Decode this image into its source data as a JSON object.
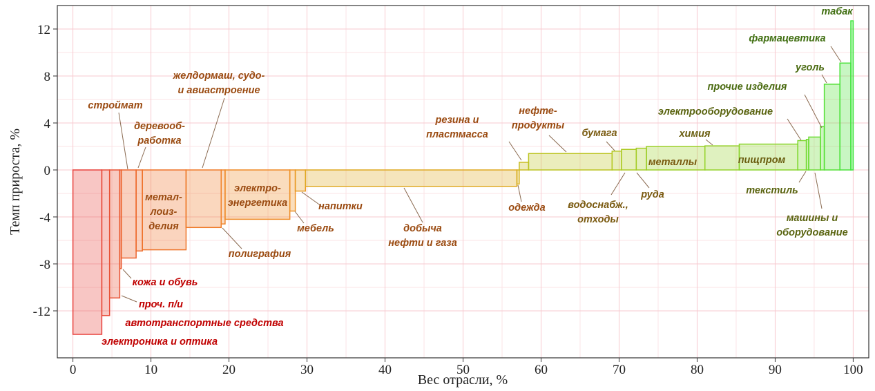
{
  "chart_data": {
    "type": "variable-width-bar",
    "x_label": "Вес отрасли, %",
    "y_label": "Темп прироста, %",
    "xlim": [
      -2,
      102
    ],
    "ylim": [
      -16,
      14
    ],
    "xticks": [
      0,
      10,
      20,
      30,
      40,
      50,
      60,
      70,
      80,
      90,
      100
    ],
    "yticks": [
      -12,
      -8,
      -4,
      0,
      4,
      8,
      12
    ],
    "grid": true,
    "categories": [
      [
        "электроника и оптика"
      ],
      [
        "автотранспортные средства"
      ],
      [
        "проч. п/и"
      ],
      [
        "кожа и обувь"
      ],
      [
        "строймат"
      ],
      [
        "деревооб-",
        "работка"
      ],
      [
        "метал-",
        "лоиз-",
        "делия"
      ],
      [
        "желдормаш, судо-",
        "и авиастроение"
      ],
      [
        "полиграфия"
      ],
      [
        "электро-",
        "энергетика"
      ],
      [
        "мебель"
      ],
      [
        "напитки"
      ],
      [
        "добыча",
        "нефти и газа"
      ],
      [
        "одежда"
      ],
      [
        "резина и",
        "пластмасса"
      ],
      [
        "нефте-",
        "продукты"
      ],
      [
        "бумага"
      ],
      [
        "водоснабж.,",
        "отходы"
      ],
      [
        "руда"
      ],
      [
        "металлы"
      ],
      [
        "химия"
      ],
      [
        "пищпром"
      ],
      [
        "электрооборудование"
      ],
      [
        "текстиль"
      ],
      [
        "машины и",
        "оборудование"
      ],
      [
        "прочие изделия"
      ],
      [
        "уголь"
      ],
      [
        "фармацевтика"
      ],
      [
        "табак"
      ]
    ],
    "bins": [
      0,
      3.7,
      4.7,
      6.0,
      6.2,
      8.1,
      8.9,
      14.5,
      19.0,
      19.5,
      27.8,
      28.5,
      29.8,
      56.9,
      57.2,
      58.4,
      69.1,
      70.3,
      72.2,
      73.5,
      81.0,
      85.4,
      92.9,
      94.0,
      94.3,
      95.8,
      96.3,
      98.3,
      99.7,
      100
    ],
    "values": [
      -14.0,
      -12.4,
      -10.9,
      -8.4,
      -7.5,
      -6.9,
      -6.8,
      -4.9,
      -4.6,
      -4.2,
      -3.5,
      -1.8,
      -1.4,
      -1.2,
      0.65,
      1.4,
      1.6,
      1.75,
      1.85,
      2.0,
      2.05,
      2.2,
      2.5,
      2.6,
      2.8,
      3.7,
      7.3,
      9.1,
      12.7
    ],
    "colors": [
      "#e8413c",
      "#e84a38",
      "#e85234",
      "#ea5a30",
      "#ec622c",
      "#ed6a2a",
      "#ee7228",
      "#ef7a28",
      "#f08228",
      "#ef8a26",
      "#ee9226",
      "#e89a22",
      "#dfa820",
      "#d8b020",
      "#c8bc20",
      "#bcc420",
      "#b4c822",
      "#acca24",
      "#a4cc26",
      "#9ccf28",
      "#94d22a",
      "#8ad42c",
      "#7ed82e",
      "#74da30",
      "#6adc32",
      "#60de34",
      "#54e036",
      "#48e238",
      "#3ce63a"
    ],
    "label_colors": [
      "#c00000",
      "#c00000",
      "#c00000",
      "#c00000",
      "#9a4a10",
      "#9a4a10",
      "#9a4a10",
      "#9a4a10",
      "#9a4a10",
      "#9a4a10",
      "#9a4a10",
      "#9a4a10",
      "#9a4a10",
      "#9a4a10",
      "#9a4a10",
      "#9a4a10",
      "#7a5a10",
      "#7a5a10",
      "#7a5a10",
      "#7a5a10",
      "#6a5e10",
      "#6a5e10",
      "#5a6410",
      "#5a6410",
      "#5a6410",
      "#4a6a10",
      "#4a6a10",
      "#3f6e10",
      "#3f6e10"
    ]
  }
}
